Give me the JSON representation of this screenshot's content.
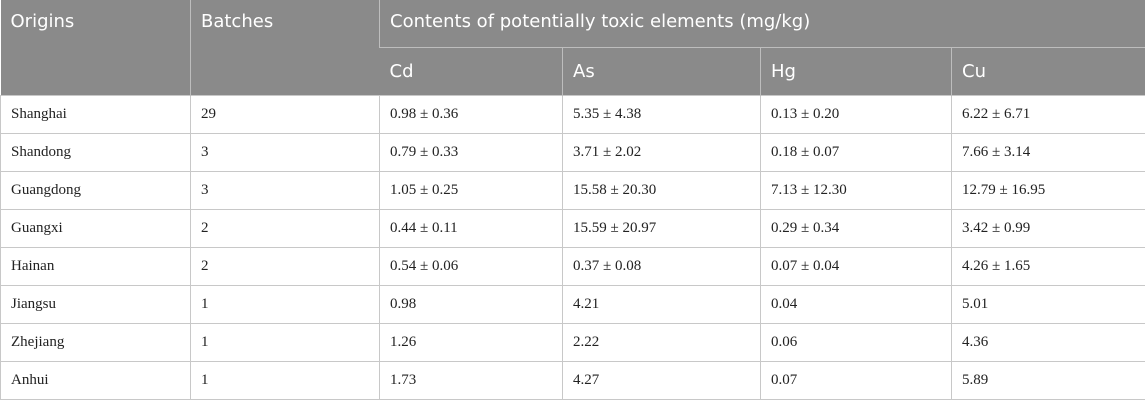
{
  "header": {
    "origins": "Origins",
    "batches": "Batches",
    "contents_group": "Contents of potentially toxic elements (mg/kg)",
    "elements": [
      "Cd",
      "As",
      "Hg",
      "Cu"
    ]
  },
  "rows": [
    {
      "origin": "Shanghai",
      "batches": "29",
      "cd": "0.98 ± 0.36",
      "as": "5.35 ± 4.38",
      "hg": "0.13 ± 0.20",
      "cu": "6.22 ± 6.71"
    },
    {
      "origin": "Shandong",
      "batches": "3",
      "cd": "0.79 ± 0.33",
      "as": "3.71 ± 2.02",
      "hg": "0.18 ± 0.07",
      "cu": "7.66 ± 3.14"
    },
    {
      "origin": "Guangdong",
      "batches": "3",
      "cd": "1.05 ± 0.25",
      "as": "15.58 ± 20.30",
      "hg": "7.13 ± 12.30",
      "cu": "12.79 ± 16.95"
    },
    {
      "origin": "Guangxi",
      "batches": "2",
      "cd": "0.44 ± 0.11",
      "as": "15.59 ± 20.97",
      "hg": "0.29 ± 0.34",
      "cu": "3.42 ± 0.99"
    },
    {
      "origin": "Hainan",
      "batches": "2",
      "cd": "0.54 ± 0.06",
      "as": "0.37 ± 0.08",
      "hg": "0.07 ± 0.04",
      "cu": "4.26 ± 1.65"
    },
    {
      "origin": "Jiangsu",
      "batches": "1",
      "cd": "0.98",
      "as": "4.21",
      "hg": "0.04",
      "cu": "5.01"
    },
    {
      "origin": "Zhejiang",
      "batches": "1",
      "cd": "1.26",
      "as": "2.22",
      "hg": "0.06",
      "cu": "4.36"
    },
    {
      "origin": "Anhui",
      "batches": "1",
      "cd": "1.73",
      "as": "4.27",
      "hg": "0.07",
      "cu": "5.89"
    }
  ],
  "colors": {
    "header_bg": "#8a8a8a",
    "header_text": "#ffffff",
    "border": "#c8c8c8"
  }
}
